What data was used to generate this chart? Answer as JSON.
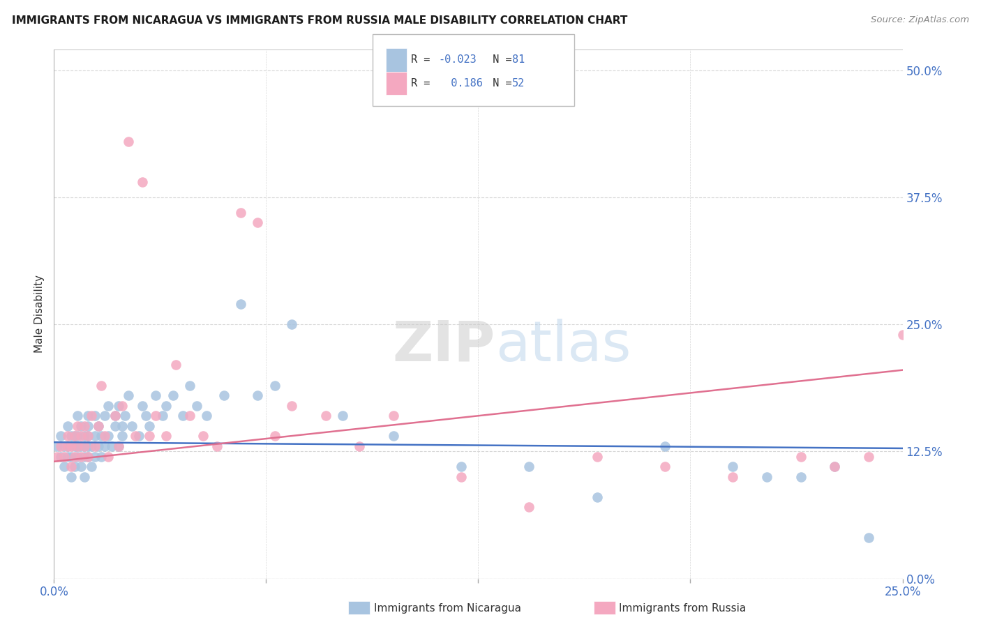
{
  "title": "IMMIGRANTS FROM NICARAGUA VS IMMIGRANTS FROM RUSSIA MALE DISABILITY CORRELATION CHART",
  "source": "Source: ZipAtlas.com",
  "ylabel_label": "Male Disability",
  "ylabel_ticks": [
    "0.0%",
    "12.5%",
    "25.0%",
    "37.5%",
    "50.0%"
  ],
  "ylabel_values": [
    0.0,
    0.125,
    0.25,
    0.375,
    0.5
  ],
  "xlim": [
    0.0,
    0.25
  ],
  "ylim": [
    0.0,
    0.52
  ],
  "r_nicaragua": -0.023,
  "n_nicaragua": 81,
  "r_russia": 0.186,
  "n_russia": 52,
  "color_nicaragua": "#a8c4e0",
  "color_russia": "#f4a8c0",
  "line_color_nicaragua": "#4472c4",
  "line_color_russia": "#e07090",
  "background_color": "#ffffff",
  "grid_color": "#d8d8d8",
  "nicaragua_x": [
    0.001,
    0.002,
    0.002,
    0.003,
    0.003,
    0.004,
    0.004,
    0.004,
    0.005,
    0.005,
    0.005,
    0.006,
    0.006,
    0.006,
    0.007,
    0.007,
    0.007,
    0.007,
    0.008,
    0.008,
    0.008,
    0.009,
    0.009,
    0.009,
    0.009,
    0.01,
    0.01,
    0.01,
    0.01,
    0.01,
    0.011,
    0.011,
    0.012,
    0.012,
    0.012,
    0.013,
    0.013,
    0.014,
    0.014,
    0.015,
    0.015,
    0.016,
    0.016,
    0.017,
    0.018,
    0.018,
    0.019,
    0.019,
    0.02,
    0.02,
    0.021,
    0.022,
    0.023,
    0.025,
    0.026,
    0.027,
    0.028,
    0.03,
    0.032,
    0.033,
    0.035,
    0.038,
    0.04,
    0.042,
    0.045,
    0.05,
    0.055,
    0.06,
    0.065,
    0.07,
    0.085,
    0.1,
    0.12,
    0.14,
    0.16,
    0.18,
    0.2,
    0.21,
    0.22,
    0.23,
    0.24
  ],
  "nicaragua_y": [
    0.13,
    0.12,
    0.14,
    0.13,
    0.11,
    0.12,
    0.13,
    0.15,
    0.12,
    0.14,
    0.1,
    0.13,
    0.14,
    0.11,
    0.13,
    0.16,
    0.12,
    0.14,
    0.13,
    0.11,
    0.15,
    0.12,
    0.13,
    0.14,
    0.1,
    0.16,
    0.13,
    0.14,
    0.12,
    0.15,
    0.13,
    0.11,
    0.14,
    0.16,
    0.12,
    0.13,
    0.15,
    0.14,
    0.12,
    0.16,
    0.13,
    0.17,
    0.14,
    0.13,
    0.15,
    0.16,
    0.13,
    0.17,
    0.15,
    0.14,
    0.16,
    0.18,
    0.15,
    0.14,
    0.17,
    0.16,
    0.15,
    0.18,
    0.16,
    0.17,
    0.18,
    0.16,
    0.19,
    0.17,
    0.16,
    0.18,
    0.27,
    0.18,
    0.19,
    0.25,
    0.16,
    0.14,
    0.11,
    0.11,
    0.08,
    0.13,
    0.11,
    0.1,
    0.1,
    0.11,
    0.04
  ],
  "russia_x": [
    0.001,
    0.002,
    0.003,
    0.004,
    0.004,
    0.005,
    0.005,
    0.006,
    0.006,
    0.007,
    0.007,
    0.008,
    0.008,
    0.009,
    0.009,
    0.01,
    0.01,
    0.011,
    0.012,
    0.013,
    0.014,
    0.015,
    0.016,
    0.018,
    0.019,
    0.02,
    0.022,
    0.024,
    0.026,
    0.028,
    0.03,
    0.033,
    0.036,
    0.04,
    0.044,
    0.048,
    0.055,
    0.06,
    0.065,
    0.07,
    0.08,
    0.09,
    0.1,
    0.12,
    0.14,
    0.16,
    0.18,
    0.2,
    0.22,
    0.23,
    0.24,
    0.25
  ],
  "russia_y": [
    0.12,
    0.13,
    0.12,
    0.13,
    0.14,
    0.13,
    0.11,
    0.14,
    0.12,
    0.15,
    0.13,
    0.12,
    0.14,
    0.13,
    0.15,
    0.14,
    0.12,
    0.16,
    0.13,
    0.15,
    0.19,
    0.14,
    0.12,
    0.16,
    0.13,
    0.17,
    0.43,
    0.14,
    0.39,
    0.14,
    0.16,
    0.14,
    0.21,
    0.16,
    0.14,
    0.13,
    0.36,
    0.35,
    0.14,
    0.17,
    0.16,
    0.13,
    0.16,
    0.1,
    0.07,
    0.12,
    0.11,
    0.1,
    0.12,
    0.11,
    0.12,
    0.24
  ]
}
